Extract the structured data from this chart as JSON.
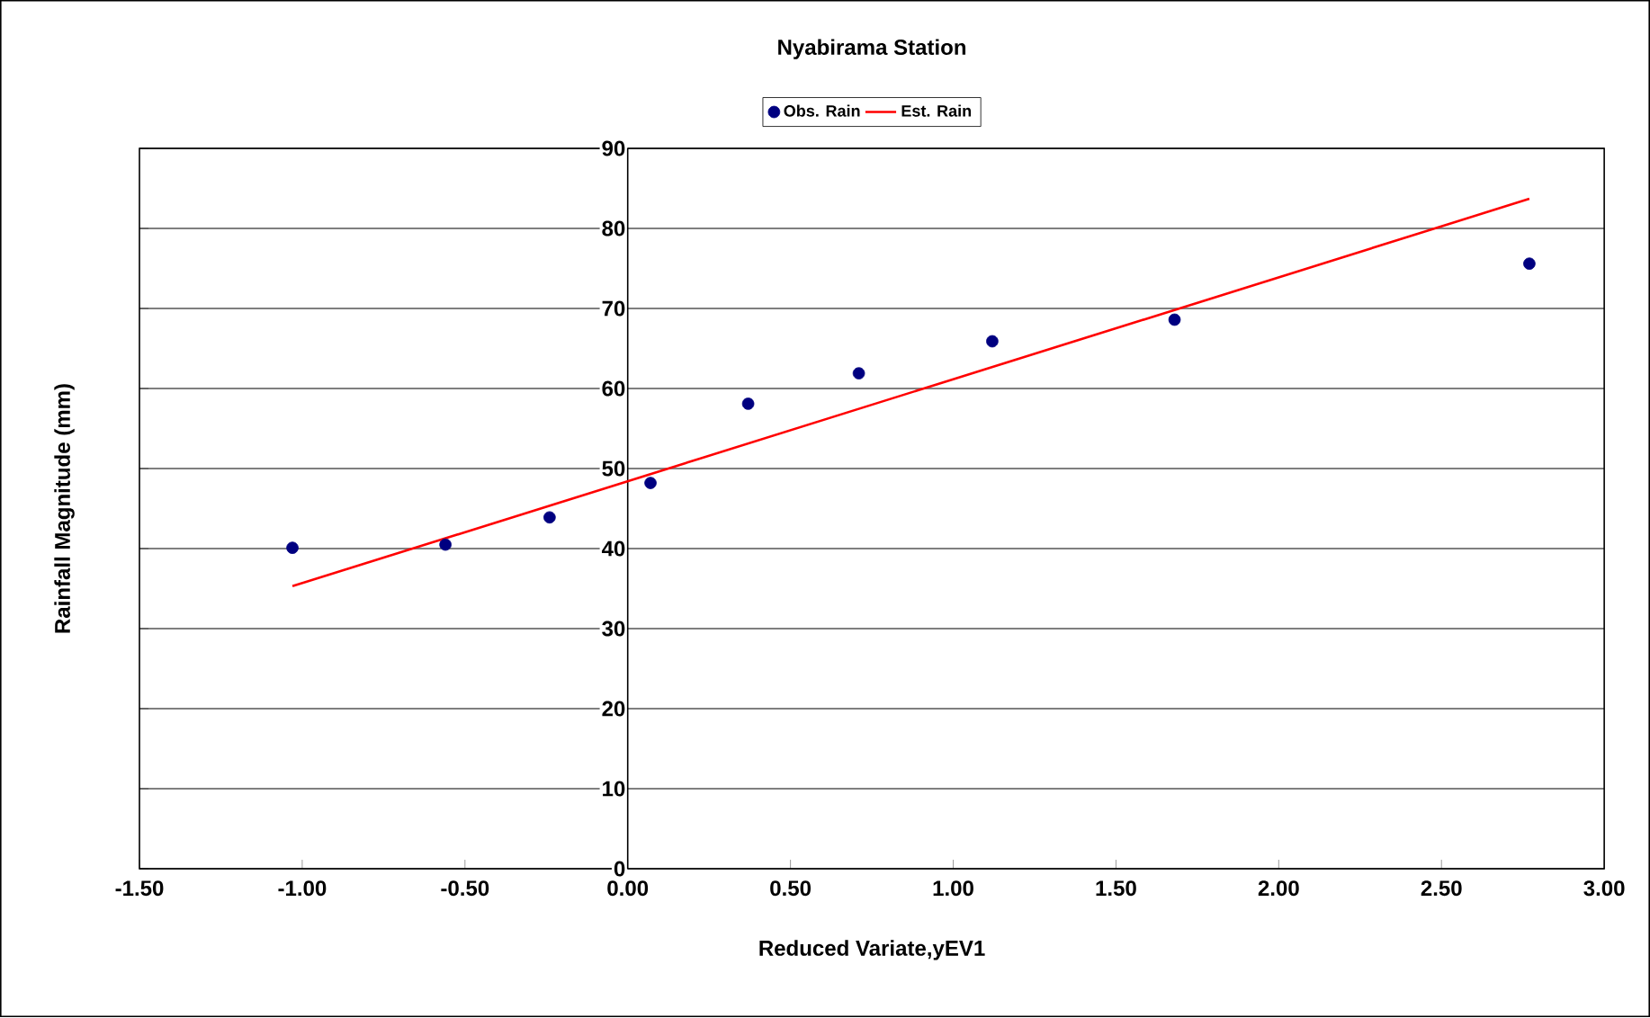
{
  "chart_data": {
    "type": "scatter",
    "title": "Nyabirama Station",
    "xlabel": "Reduced Variate,yEV1",
    "ylabel": "Rainfall Magnitude (mm)",
    "series": [
      {
        "name": "Obs. Rain",
        "type": "scatter",
        "color": "#000080",
        "marker": "circle",
        "x": [
          -1.03,
          -0.56,
          -0.24,
          0.07,
          0.37,
          0.71,
          1.12,
          1.68,
          2.77
        ],
        "values": [
          40.1,
          40.5,
          43.9,
          48.2,
          58.1,
          61.9,
          65.9,
          68.6,
          75.6
        ]
      },
      {
        "name": "Est. Rain",
        "type": "line",
        "color": "#ff0000",
        "marker": "none",
        "x": [
          -1.03,
          2.77
        ],
        "values": [
          35.3,
          83.7
        ]
      }
    ],
    "xlim": [
      -1.5,
      3.0
    ],
    "ylim": [
      0,
      90
    ],
    "xticks": [
      {
        "value": -1.5,
        "label": "-1.50"
      },
      {
        "value": -1.0,
        "label": "-1.00"
      },
      {
        "value": -0.5,
        "label": "-0.50"
      },
      {
        "value": 0,
        "label": "0.00"
      },
      {
        "value": 0.5,
        "label": "0.50"
      },
      {
        "value": 1.0,
        "label": "1.00"
      },
      {
        "value": 1.5,
        "label": "1.50"
      },
      {
        "value": 2.0,
        "label": "2.00"
      },
      {
        "value": 2.5,
        "label": "2.50"
      },
      {
        "value": 3.0,
        "label": "3.00"
      }
    ],
    "yticks": [
      0,
      10,
      20,
      30,
      40,
      50,
      60,
      70,
      80,
      90
    ],
    "grid": "y",
    "legend": "top"
  }
}
